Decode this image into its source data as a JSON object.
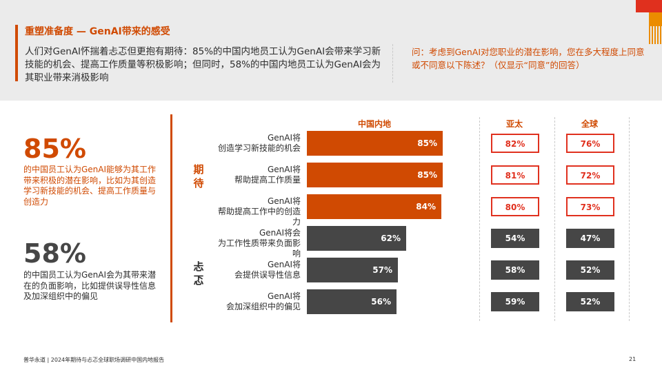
{
  "header": {
    "title": "重塑准备度 — GenAI带来的感受",
    "intro": "人们对GenAI怀揣着忐忑但更抱有期待：85%的中国内地员工认为GenAI会带来学习新技能的机会、提高工作质量等积极影响；但同时，58%的中国内地员工认为GenAI会为其职业带来消极影响",
    "question": "问：考虑到GenAI对您职业的潜在影响，您在多大程度上同意或不同意以下陈述？（仅显示“同意”的回答）"
  },
  "highlights": {
    "positive": {
      "value": "85%",
      "text": "的中国员工认为GenAI能够为其工作带来积极的潜在影响，比如为其创造学习新技能的机会、提高工作质量与创造力"
    },
    "negative": {
      "value": "58%",
      "text": "的中国员工认为GenAI会为其带来潜在的负面影响，比如提供误导性信息及加深组织中的偏见"
    }
  },
  "categories": {
    "positive": "期待",
    "negative": "忐忑"
  },
  "colors": {
    "orange": "#d04a02",
    "red": "#e0301e",
    "dark": "#464646",
    "accent": "#eb8c00"
  },
  "chart_data": {
    "type": "bar",
    "orientation": "horizontal",
    "columns": [
      "中国内地",
      "亚太",
      "全球"
    ],
    "rows": [
      {
        "label": "GenAI将创造学习新技能的机会",
        "group": "期待",
        "china": 85,
        "apac": 82,
        "global": 76
      },
      {
        "label": "GenAI将帮助提高工作质量",
        "group": "期待",
        "china": 85,
        "apac": 81,
        "global": 72
      },
      {
        "label": "GenAI将帮助提高工作中的创造力",
        "group": "期待",
        "china": 84,
        "apac": 80,
        "global": 73
      },
      {
        "label": "GenAI将会为工作性质带来负面影响",
        "group": "忐忑",
        "china": 62,
        "apac": 54,
        "global": 47
      },
      {
        "label": "GenAI将会提供误导性信息",
        "group": "忐忑",
        "china": 57,
        "apac": 58,
        "global": 52
      },
      {
        "label": "GenAI将会加深组织中的偏见",
        "group": "忐忑",
        "china": 56,
        "apac": 59,
        "global": 52
      }
    ],
    "unit": "%"
  },
  "footer": {
    "source": "普华永道 | 2024年期待与忐忑全球职场调研中国内地报告",
    "page": "21"
  }
}
